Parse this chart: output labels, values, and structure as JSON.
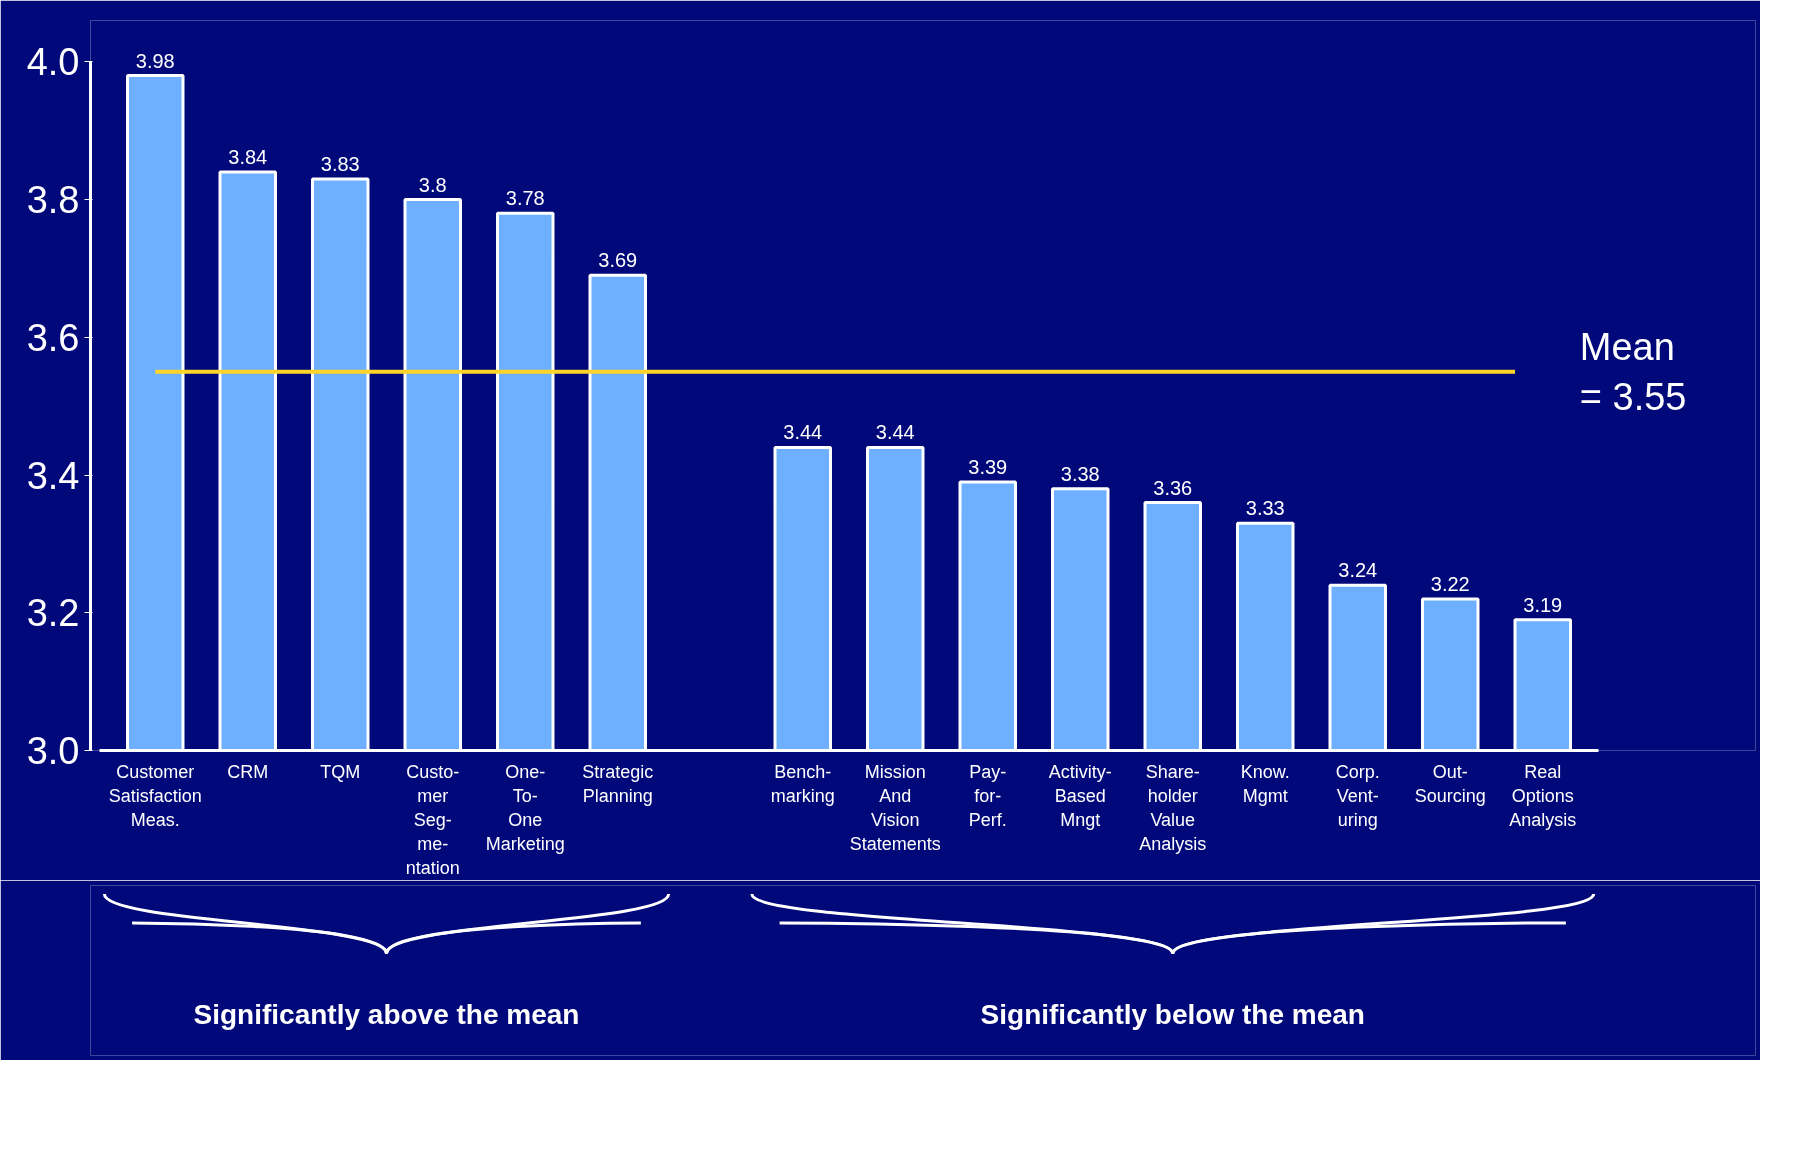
{
  "chart_data": {
    "type": "bar",
    "categories": [
      "Customer\nSatisfaction\nMeas.",
      "CRM",
      "TQM",
      "Custo-\nmer\nSeg-\nme-\nntation",
      "One-\nTo-\nOne\nMarketing",
      "Strategic\nPlanning",
      null,
      "Bench-\nmarking",
      "Mission\nAnd\nVision\nStatements",
      "Pay-\nfor-\nPerf.",
      "Activity-\nBased\nMngt",
      "Share-\nholder\nValue\nAnalysis",
      "Know.\nMgmt",
      "Corp.\nVent-\nuring",
      "Out-\nSourcing",
      "Real\nOptions\nAnalysis"
    ],
    "values": [
      3.98,
      3.84,
      3.83,
      3.8,
      3.78,
      3.69,
      null,
      3.44,
      3.44,
      3.39,
      3.38,
      3.36,
      3.33,
      3.24,
      3.22,
      3.19
    ],
    "color": "#6eb0ff",
    "data_labels": true,
    "ylim": [
      3.0,
      4.0
    ],
    "yticks": [
      {
        "value": 3.0,
        "label": "3.0"
      },
      3.2,
      3.4,
      3.6,
      3.8,
      {
        "value": 4.0,
        "label": "4.0"
      }
    ],
    "grid": false,
    "ref_lines": [
      {
        "axis": "y",
        "value": 3.55,
        "label": "Mean = 3.55",
        "color": "#ffd42a"
      }
    ],
    "annotations": [
      "Significantly above the mean",
      "Significantly below the mean"
    ]
  }
}
